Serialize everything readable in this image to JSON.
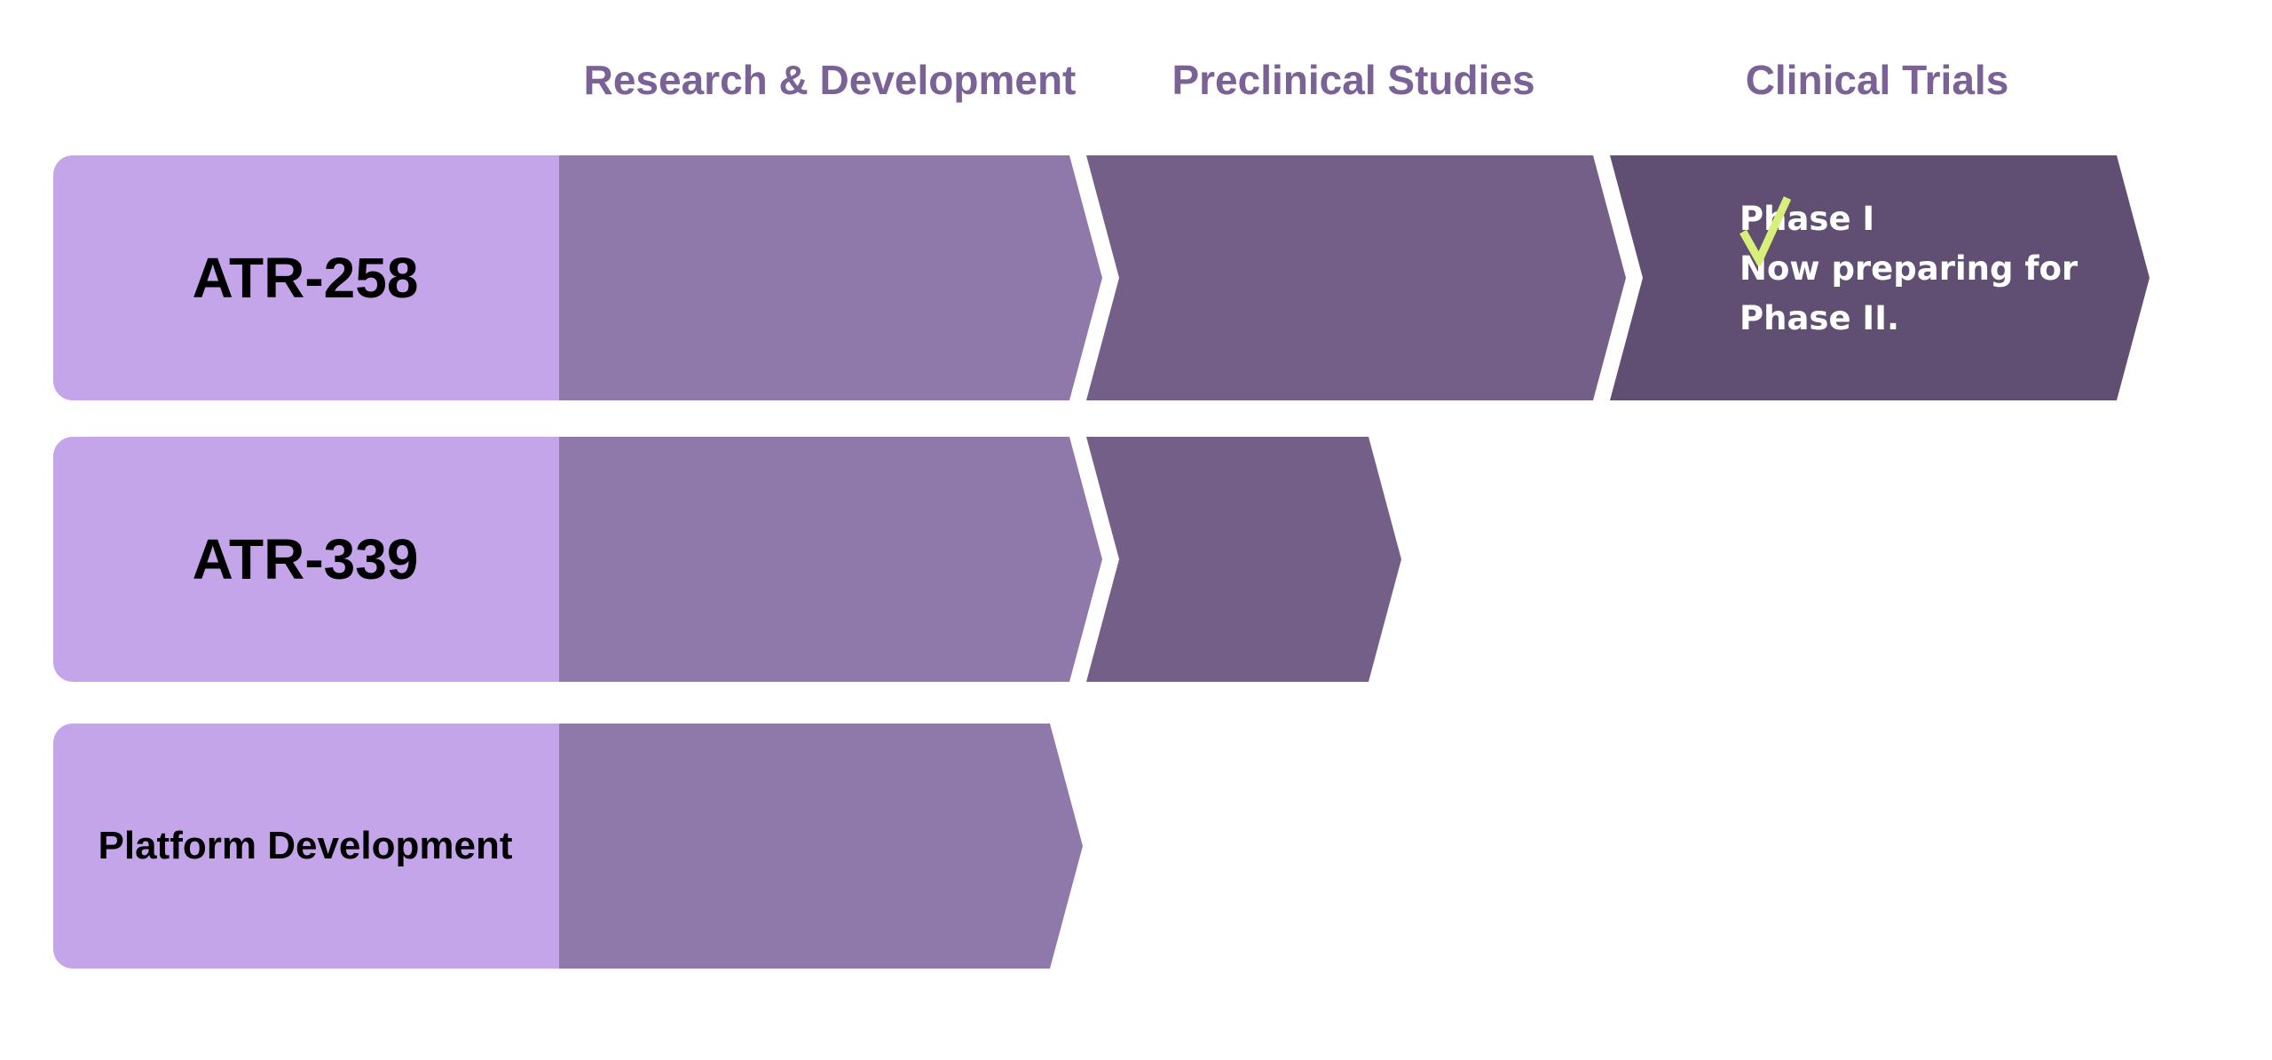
{
  "columns": [
    {
      "label": "Research & Development"
    },
    {
      "label": "Preclinical Studies"
    },
    {
      "label": "Clinical Trials"
    }
  ],
  "programs": [
    {
      "name": "ATR-258",
      "stages_completed": [
        "Research & Development",
        "Preclinical Studies",
        "Clinical Trials"
      ]
    },
    {
      "name": "ATR-339",
      "stages_completed": [
        "Research & Development",
        "Preclinical Studies"
      ]
    },
    {
      "name": "Platform Development",
      "stages_completed": [
        "Research & Development"
      ]
    }
  ],
  "note": {
    "line1": "Phase I",
    "line2": "Now preparing for",
    "line3": "Phase II.",
    "icon": "checkmark-icon"
  },
  "colors": {
    "label_bg": "#c4a5e9",
    "stage1": "#8f79aa",
    "stage2": "#745f88",
    "stage3": "#614e73",
    "header_text": "#7a6296",
    "check": "#d7f07a"
  }
}
